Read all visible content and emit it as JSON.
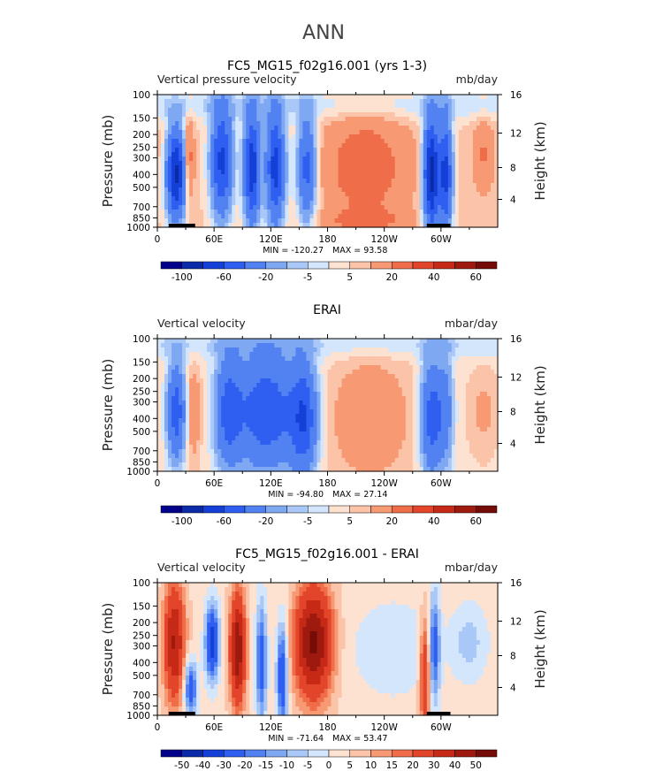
{
  "figure": {
    "title": "ANN"
  },
  "colors": {
    "scale": [
      "#00008b",
      "#0b2aa8",
      "#1440d8",
      "#2f5ff0",
      "#5282f2",
      "#7fa8f2",
      "#a9c8f7",
      "#d4e6fb",
      "#fde2d1",
      "#fbc3a7",
      "#f79a74",
      "#ef6d48",
      "#e2452a",
      "#c62a17",
      "#9e1a0f",
      "#760c08"
    ],
    "land": "#000000"
  },
  "chart_data": [
    {
      "type": "heatmap",
      "title": "FC5_MG15_f02g16.001 (yrs 1-3)",
      "left_label": "Vertical pressure velocity",
      "units": "mb/day",
      "ylabel": "Pressure (mb)",
      "ylabel_right": "Height (km)",
      "x_ticks": [
        "0",
        "60E",
        "120E",
        "180",
        "120W",
        "60W"
      ],
      "y_ticks": [
        "100",
        "150",
        "200",
        "250",
        "300",
        "400",
        "500",
        "700",
        "850",
        "1000"
      ],
      "y_ticks_right": [
        "16",
        "12",
        "8",
        "4"
      ],
      "min_label": "MIN = -120.27",
      "max_label": "MAX =  93.58",
      "colorbar_labels": [
        "-100",
        "-60",
        "-20",
        "-5",
        "5",
        "20",
        "40",
        "60"
      ],
      "colorbar_label_pos": [
        1,
        3,
        5,
        7,
        9,
        11,
        13,
        15
      ],
      "colorbar_n": 16,
      "land": [
        [
          12,
          40
        ],
        [
          285,
          310
        ]
      ]
    },
    {
      "type": "heatmap",
      "title": "ERAI",
      "left_label": "Vertical velocity",
      "units": "mbar/day",
      "ylabel": "Pressure (mb)",
      "ylabel_right": "Height (km)",
      "x_ticks": [
        "0",
        "60E",
        "120E",
        "180",
        "120W",
        "60W"
      ],
      "y_ticks": [
        "100",
        "150",
        "200",
        "250",
        "300",
        "400",
        "500",
        "700",
        "850",
        "1000"
      ],
      "y_ticks_right": [
        "16",
        "12",
        "8",
        "4"
      ],
      "min_label": "MIN = -94.80",
      "max_label": "MAX =  27.14",
      "colorbar_labels": [
        "-100",
        "-60",
        "-20",
        "-5",
        "5",
        "20",
        "40",
        "60"
      ],
      "colorbar_label_pos": [
        1,
        3,
        5,
        7,
        9,
        11,
        13,
        15
      ],
      "colorbar_n": 16,
      "land": []
    },
    {
      "type": "heatmap",
      "title": "FC5_MG15_f02g16.001 - ERAI",
      "left_label": "Vertical velocity",
      "units": "mbar/day",
      "ylabel": "Pressure (mb)",
      "ylabel_right": "Height (km)",
      "x_ticks": [
        "0",
        "60E",
        "120E",
        "180",
        "120W",
        "60W"
      ],
      "y_ticks": [
        "100",
        "150",
        "200",
        "250",
        "300",
        "400",
        "500",
        "700",
        "850",
        "1000"
      ],
      "y_ticks_right": [
        "16",
        "12",
        "8",
        "4"
      ],
      "min_label": "MIN = -71.64",
      "max_label": "MAX =  53.47",
      "colorbar_labels": [
        "-50",
        "-40",
        "-30",
        "-20",
        "-15",
        "-10",
        "-5",
        "0",
        "5",
        "10",
        "15",
        "20",
        "30",
        "40",
        "50"
      ],
      "colorbar_label_pos": [
        1,
        2,
        3,
        4,
        5,
        6,
        7,
        8,
        9,
        10,
        11,
        12,
        13,
        14,
        15
      ],
      "colorbar_n": 16,
      "land": [
        [
          12,
          40
        ],
        [
          285,
          310
        ]
      ]
    }
  ]
}
